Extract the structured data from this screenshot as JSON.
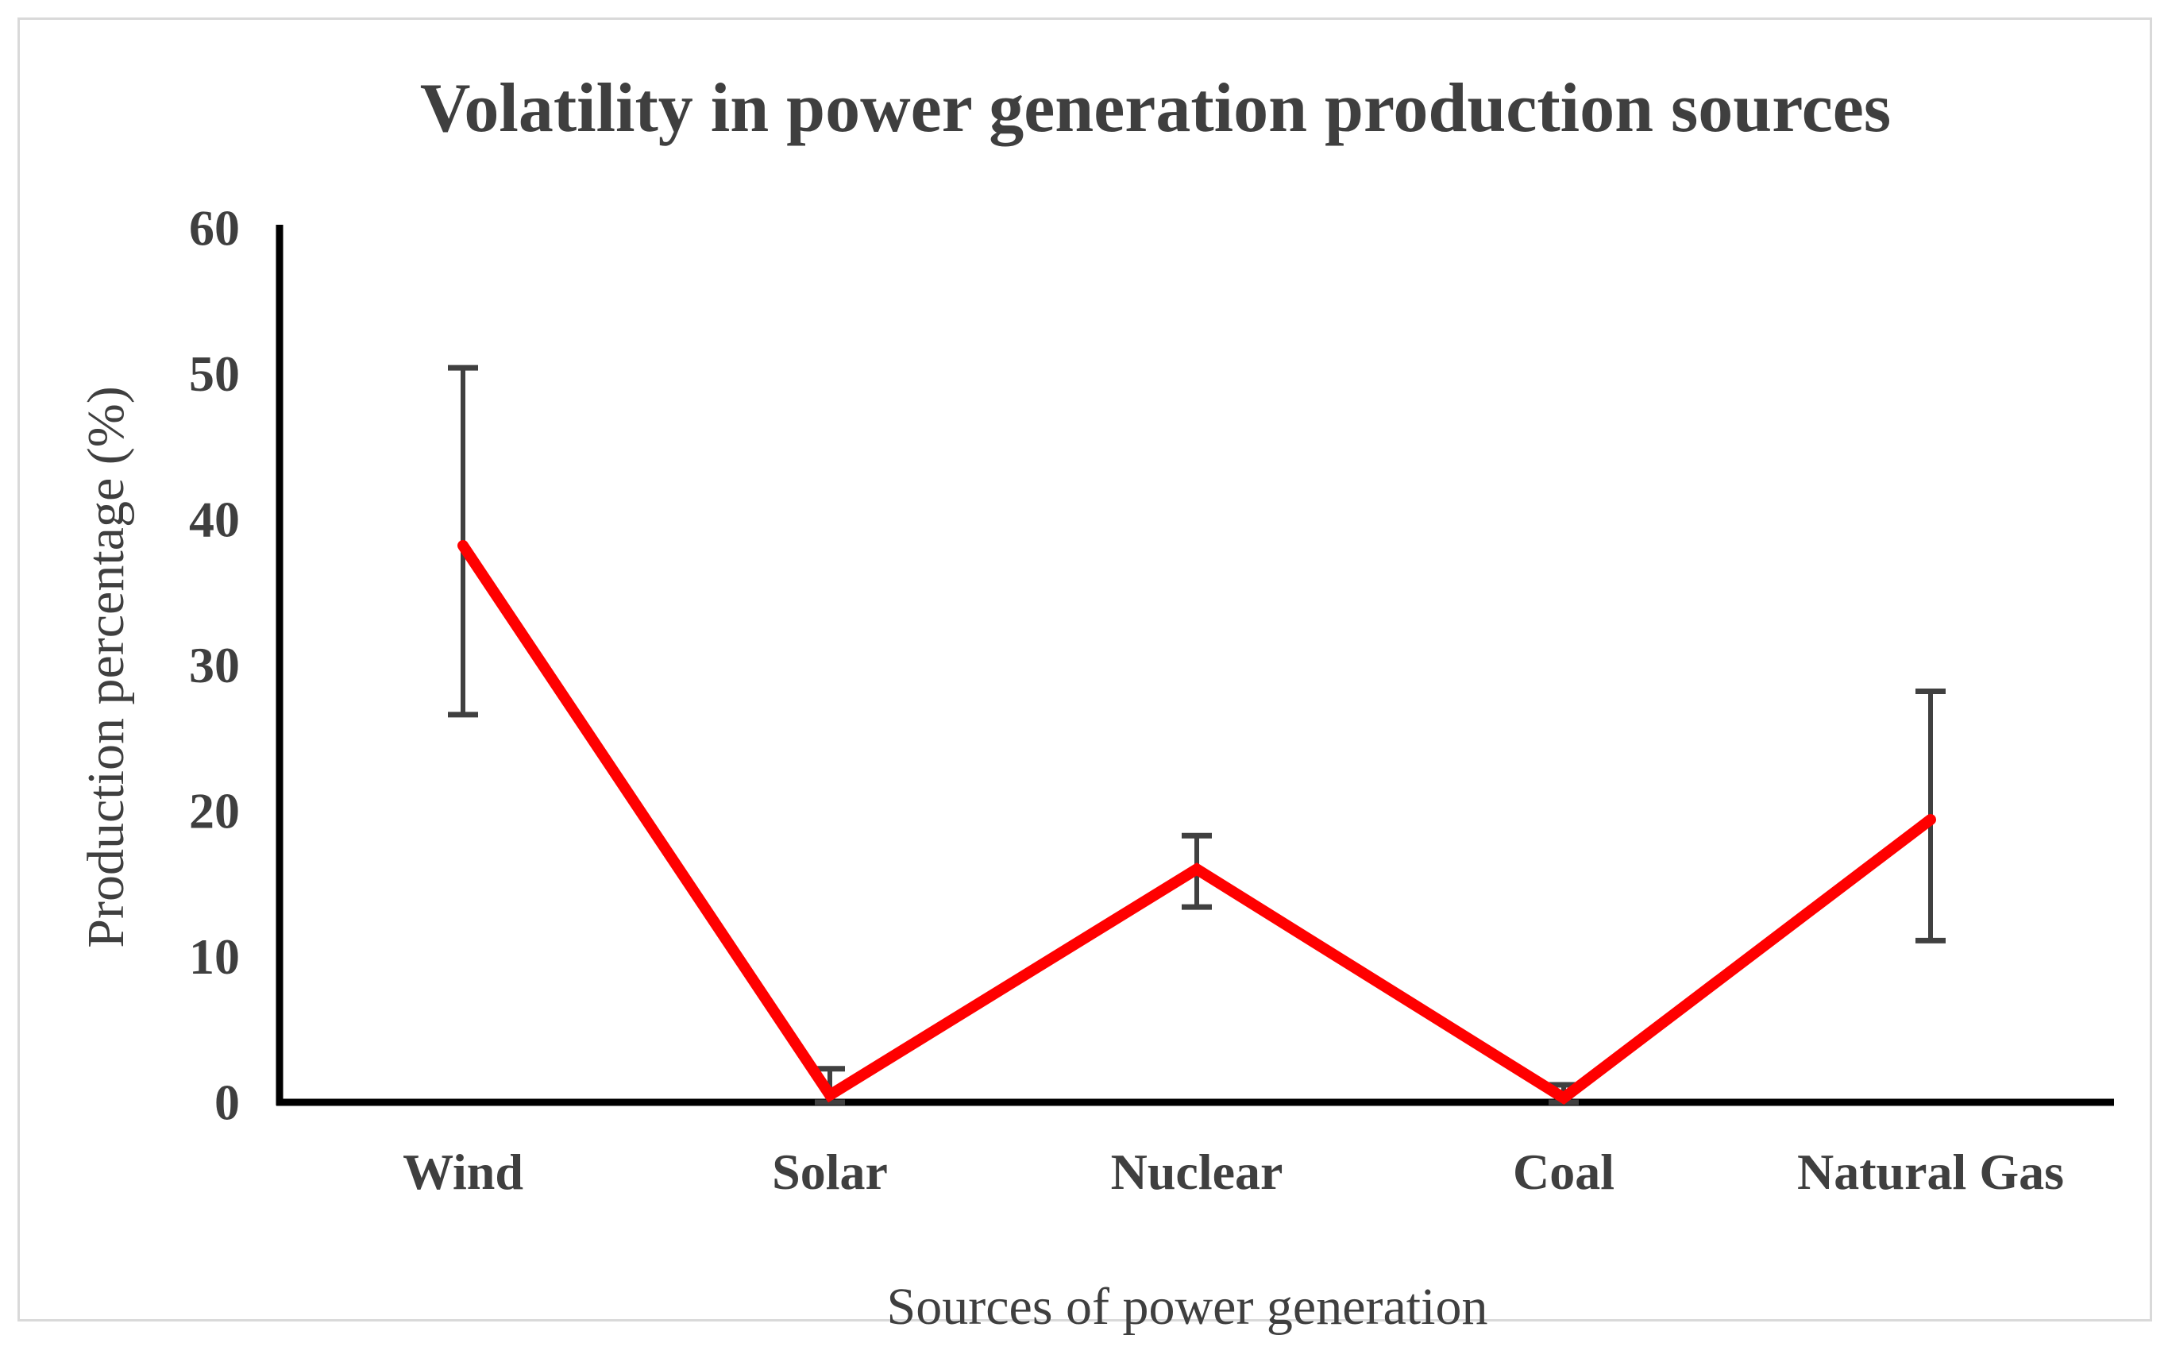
{
  "chart_data": {
    "type": "line",
    "title": "Volatility in power generation production sources",
    "xlabel": "Sources of power generation",
    "ylabel": "Production percentage (%)",
    "categories": [
      "Wind",
      "Solar",
      "Nuclear",
      "Coal",
      "Natural Gas"
    ],
    "series": [
      {
        "name": "Production percentage",
        "values": [
          38.2,
          0.5,
          16.0,
          0.3,
          19.4
        ],
        "error_low": [
          26.6,
          0,
          13.4,
          0,
          11.1
        ],
        "error_high": [
          50.4,
          2.3,
          18.3,
          1.2,
          28.2
        ]
      }
    ],
    "ylim": [
      0,
      60
    ],
    "yticks": [
      0,
      10,
      20,
      30,
      40,
      50,
      60
    ],
    "grid": false,
    "legend": false,
    "line_color": "#ff0000",
    "error_bar_color": "#404040",
    "axis_color": "#000000",
    "text_color": "#3f3f3f",
    "frame_border_color": "#d9d9d9"
  }
}
